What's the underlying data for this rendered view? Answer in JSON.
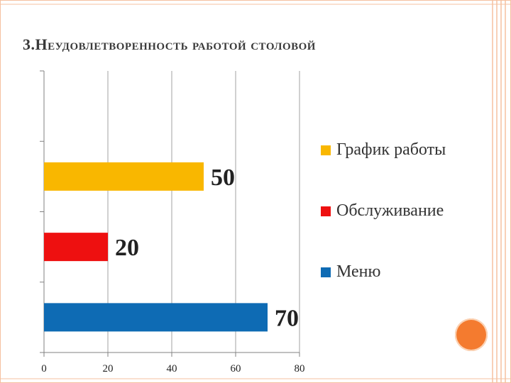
{
  "slide": {
    "title": "3.Неудовлетворенность работой столовой",
    "accent_color": "#f5c1a0",
    "decoration": "orange-circle"
  },
  "chart_data": {
    "type": "bar",
    "orientation": "horizontal",
    "categories": [
      "График работы",
      "Обслуживание",
      "Меню"
    ],
    "values": [
      50,
      20,
      70
    ],
    "colors": [
      "#f9b700",
      "#ee1010",
      "#0e6bb4"
    ],
    "data_labels": [
      "50",
      "20",
      "70"
    ],
    "xlim": [
      0,
      80
    ],
    "xticks": [
      "0",
      "20",
      "40",
      "60",
      "80"
    ],
    "grid": true,
    "legend_position": "right",
    "legend": [
      {
        "label": "График работы",
        "color": "#f9b700"
      },
      {
        "label": "Обслуживание",
        "color": "#ee1010"
      },
      {
        "label": "Меню",
        "color": "#0e6bb4"
      }
    ]
  }
}
